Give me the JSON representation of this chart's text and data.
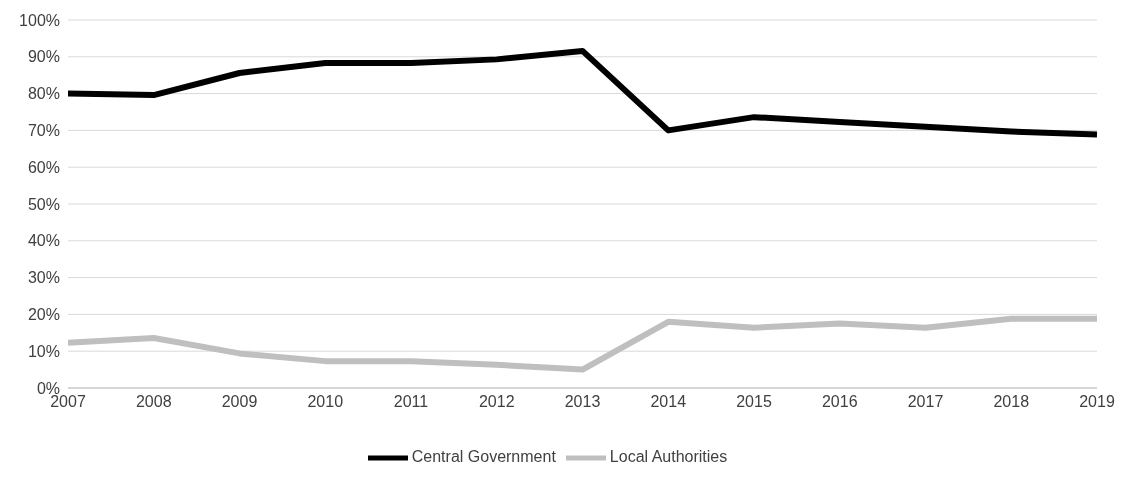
{
  "chart_data": {
    "type": "line",
    "x": [
      2007,
      2008,
      2009,
      2010,
      2011,
      2012,
      2013,
      2014,
      2015,
      2016,
      2017,
      2018,
      2019
    ],
    "xlim": [
      2007,
      2019
    ],
    "xticks": [
      2007,
      2008,
      2009,
      2010,
      2011,
      2012,
      2013,
      2014,
      2015,
      2016,
      2017,
      2018,
      2019
    ],
    "ylim": [
      0,
      100
    ],
    "yticks": [
      {
        "value": 0,
        "label": "0%"
      },
      {
        "value": 10,
        "label": "10%"
      },
      {
        "value": 20,
        "label": "20%"
      },
      {
        "value": 30,
        "label": "30%"
      },
      {
        "value": 40,
        "label": "40%"
      },
      {
        "value": 50,
        "label": "50%"
      },
      {
        "value": 60,
        "label": "60%"
      },
      {
        "value": 70,
        "label": "70%"
      },
      {
        "value": 80,
        "label": "80%"
      },
      {
        "value": 90,
        "label": "90%"
      },
      {
        "value": 100,
        "label": "100%"
      }
    ],
    "grid": "y",
    "legend": "bottom",
    "marker": "none",
    "line_style": "solid",
    "series": [
      {
        "name": "Local Authorities",
        "color": "#bfbfbf",
        "values": [
          12.3,
          13.6,
          9.4,
          7.3,
          7.3,
          6.3,
          5,
          18,
          16.4,
          17.5,
          16.4,
          18.8,
          18.8
        ]
      },
      {
        "name": "Central Government",
        "color": "#000000",
        "values": [
          80,
          79.6,
          85.6,
          88.3,
          88.3,
          89.3,
          91.6,
          70,
          73.6,
          72.3,
          71,
          69.7,
          68.9
        ]
      }
    ]
  }
}
